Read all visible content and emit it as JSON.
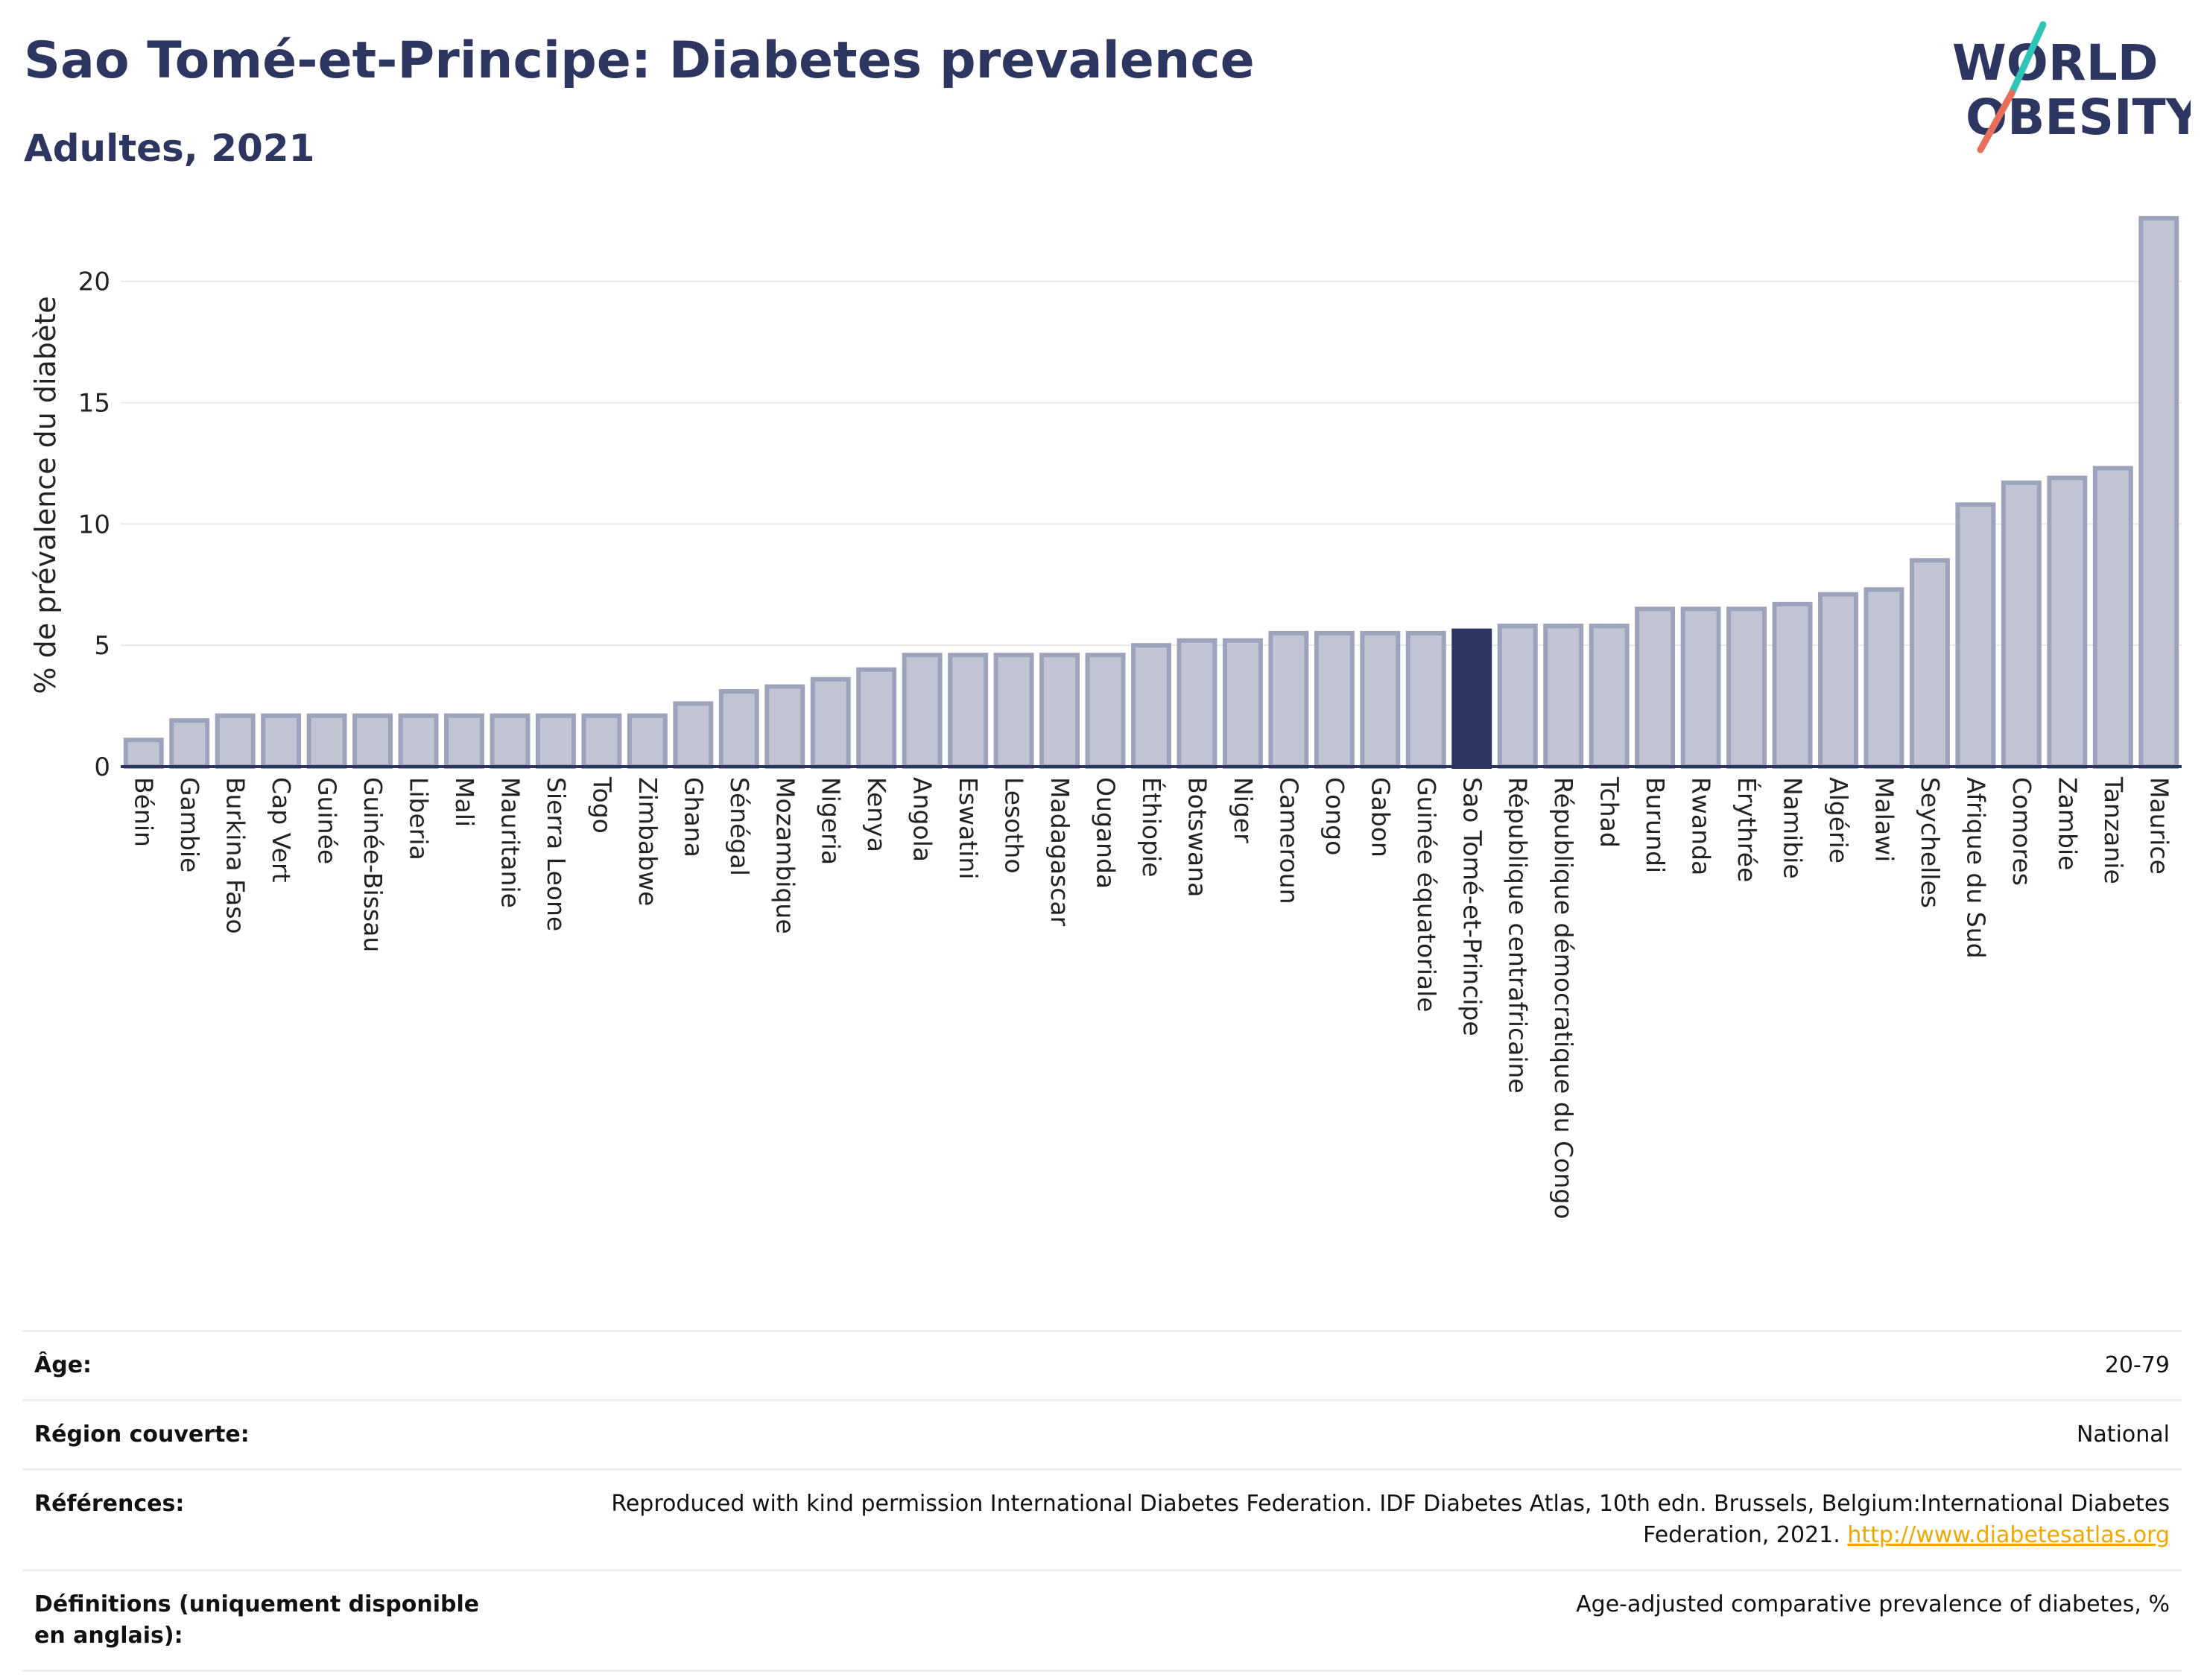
{
  "header": {
    "title": "Sao Tomé-et-Principe: Diabetes prevalence",
    "subtitle": "Adultes, 2021"
  },
  "logo": {
    "line1": "WORLD",
    "line2": "OBESITY",
    "colors": {
      "text": "#2d3561",
      "teal": "#2ec4b6",
      "coral": "#e8705a"
    }
  },
  "chart_data": {
    "type": "bar",
    "ylabel": "% de prévalence du diabète",
    "xlabel": "",
    "ylim": [
      0,
      23
    ],
    "yticks": [
      0,
      5,
      10,
      15,
      20
    ],
    "grid": true,
    "highlight": "Sao Tomé-et-Principe",
    "colors": {
      "bar": "#c0c4d3",
      "bar_edge": "#9ea3bc",
      "highlight": "#2d3561"
    },
    "categories": [
      "Bénin",
      "Gambie",
      "Burkina Faso",
      "Cap Vert",
      "Guinée",
      "Guinée-Bissau",
      "Liberia",
      "Mali",
      "Mauritanie",
      "Sierra Leone",
      "Togo",
      "Zimbabwe",
      "Ghana",
      "Sénégal",
      "Mozambique",
      "Nigeria",
      "Kenya",
      "Angola",
      "Eswatini",
      "Lesotho",
      "Madagascar",
      "Ouganda",
      "Éthiopie",
      "Botswana",
      "Niger",
      "Cameroun",
      "Congo",
      "Gabon",
      "Guinée équatoriale",
      "Sao Tomé-et-Principe",
      "République centrafricaine",
      "République démocratique du Congo",
      "Tchad",
      "Burundi",
      "Rwanda",
      "Érythrée",
      "Namibie",
      "Algérie",
      "Malawi",
      "Seychelles",
      "Afrique du Sud",
      "Comores",
      "Zambie",
      "Tanzanie",
      "Maurice"
    ],
    "values": [
      1.1,
      1.9,
      2.1,
      2.1,
      2.1,
      2.1,
      2.1,
      2.1,
      2.1,
      2.1,
      2.1,
      2.1,
      2.6,
      3.1,
      3.3,
      3.6,
      4.0,
      4.6,
      4.6,
      4.6,
      4.6,
      4.6,
      5.0,
      5.2,
      5.2,
      5.5,
      5.5,
      5.5,
      5.5,
      5.6,
      5.8,
      5.8,
      5.8,
      6.5,
      6.5,
      6.5,
      6.7,
      7.1,
      7.3,
      8.5,
      10.8,
      11.7,
      11.9,
      12.3,
      22.6
    ]
  },
  "table": {
    "rows": [
      {
        "label": "Âge:",
        "value": "20-79"
      },
      {
        "label": "Région couverte:",
        "value": "National"
      },
      {
        "label": "Références:",
        "value": "Reproduced with kind permission International Diabetes Federation.  IDF Diabetes Atlas, 10th edn. Brussels, Belgium:International Diabetes Federation, 2021.",
        "link": "http://www.diabetesatlas.org"
      },
      {
        "label": "Définitions (uniquement disponible en anglais):",
        "value": "Age-adjusted comparative prevalence of diabetes, %"
      }
    ]
  }
}
